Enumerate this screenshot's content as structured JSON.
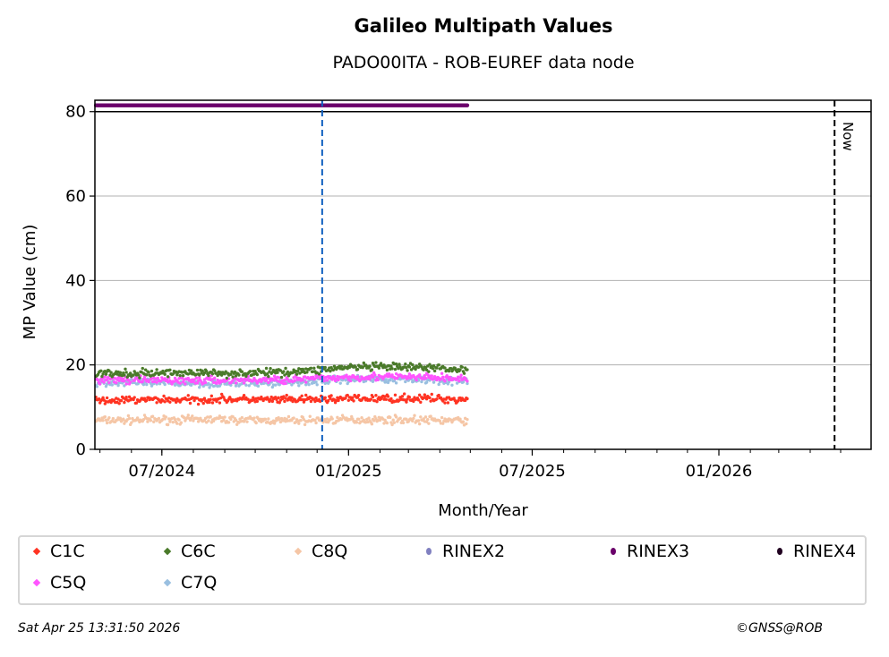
{
  "chart_data": {
    "type": "scatter",
    "title": "Galileo Multipath Values",
    "subtitle": "PADO00ITA - ROB-EUREF data node",
    "xlabel": "Month/Year",
    "ylabel": "MP Value (cm)",
    "xlim": [
      "2024-04-26",
      "2026-05-31"
    ],
    "ylim": [
      0,
      82.7
    ],
    "yticks": [
      0,
      20,
      40,
      60,
      80
    ],
    "xticks": [
      {
        "date": "2024-07-01",
        "label": "07/2024"
      },
      {
        "date": "2025-01-01",
        "label": "01/2025"
      },
      {
        "date": "2025-07-01",
        "label": "07/2025"
      },
      {
        "date": "2026-01-01",
        "label": "01/2026"
      }
    ],
    "grid": "horizontal",
    "data_range": [
      "2024-04-27",
      "2025-04-28"
    ],
    "month_starts": [
      "2024-04-27",
      "2024-05-27",
      "2024-06-27",
      "2024-07-27",
      "2024-08-27",
      "2024-09-27",
      "2024-10-27",
      "2024-11-27",
      "2024-12-27",
      "2025-01-27",
      "2025-02-27",
      "2025-03-27",
      "2025-04-28"
    ],
    "series": [
      {
        "name": "C1C",
        "color": "#ff3322",
        "marker": "x",
        "monthly_mean": [
          11.5,
          11.6,
          11.8,
          11.7,
          11.9,
          11.8,
          11.7,
          11.8,
          12.0,
          12.0,
          12.1,
          12.0,
          11.8
        ]
      },
      {
        "name": "C6C",
        "color": "#4a7a2a",
        "marker": "x",
        "monthly_mean": [
          18.0,
          17.8,
          18.1,
          18.2,
          18.0,
          18.1,
          18.3,
          18.7,
          19.4,
          19.5,
          19.4,
          19.3,
          18.8
        ]
      },
      {
        "name": "C8Q",
        "color": "#f5c6a6",
        "marker": "x",
        "monthly_mean": [
          6.9,
          6.9,
          7.0,
          7.0,
          7.1,
          6.9,
          6.8,
          6.9,
          7.0,
          7.0,
          7.0,
          6.9,
          6.8
        ]
      },
      {
        "name": "C5Q",
        "color": "#ff55ff",
        "marker": "x",
        "monthly_mean": [
          16.5,
          16.4,
          16.4,
          16.3,
          16.3,
          16.4,
          16.5,
          16.7,
          17.1,
          17.2,
          17.1,
          17.0,
          16.6
        ]
      },
      {
        "name": "C7Q",
        "color": "#99bfe0",
        "marker": "x",
        "monthly_mean": [
          15.8,
          15.8,
          15.7,
          15.7,
          15.6,
          15.7,
          15.8,
          16.1,
          16.6,
          16.7,
          16.6,
          16.5,
          16.0
        ]
      },
      {
        "name": "RINEX2",
        "color": "#8080c0",
        "marker": "o",
        "monthly_mean": []
      },
      {
        "name": "RINEX3",
        "color": "#6a006a",
        "marker": "o",
        "monthly_mean": [
          81.5,
          81.5,
          81.5,
          81.5,
          81.5,
          81.5,
          81.5,
          81.5,
          81.5,
          81.5,
          81.5,
          81.5,
          81.5
        ]
      },
      {
        "name": "RINEX4",
        "color": "#200020",
        "marker": "o",
        "monthly_mean": []
      }
    ],
    "annotations": [
      {
        "type": "hline",
        "y": 80,
        "color": "#000000"
      },
      {
        "type": "vline",
        "date": "2024-12-06",
        "color": "#1060c0",
        "style": "dashed"
      },
      {
        "type": "vline",
        "date": "2026-04-25",
        "color": "#000000",
        "style": "dashed",
        "label": "Now"
      }
    ]
  },
  "legend_order": [
    0,
    1,
    2,
    5,
    6,
    7,
    3,
    4
  ],
  "footer": {
    "timestamp": "Sat Apr 25 13:31:50 2026",
    "copyright": "©GNSS@ROB"
  }
}
